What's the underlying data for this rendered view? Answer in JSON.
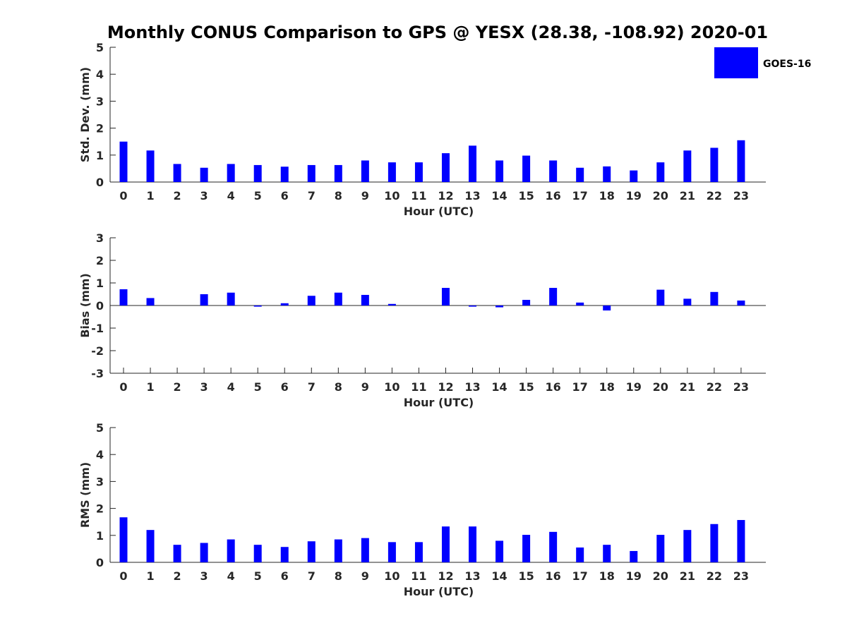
{
  "chart_data": {
    "title": "Monthly CONUS Comparison to GPS @ YESX (28.38, -108.92) 2020-01",
    "legend": {
      "label": "GOES-16",
      "color": "#0000ff",
      "placement": "top-right"
    },
    "panels": [
      {
        "type": "bar",
        "xlabel": "Hour (UTC)",
        "ylabel": "Std. Dev. (mm)",
        "ylim": [
          0,
          5
        ],
        "yticks": [
          "0",
          "1",
          "2",
          "3",
          "4",
          "5"
        ],
        "categories": [
          "0",
          "1",
          "2",
          "3",
          "4",
          "5",
          "6",
          "7",
          "8",
          "9",
          "10",
          "11",
          "12",
          "13",
          "14",
          "15",
          "16",
          "17",
          "18",
          "19",
          "20",
          "21",
          "22",
          "23"
        ],
        "values": [
          1.5,
          1.17,
          0.67,
          0.53,
          0.67,
          0.63,
          0.57,
          0.63,
          0.63,
          0.8,
          0.73,
          0.73,
          1.07,
          1.35,
          0.8,
          0.98,
          0.8,
          0.53,
          0.58,
          0.43,
          0.73,
          1.17,
          1.27,
          1.55
        ]
      },
      {
        "type": "bar",
        "xlabel": "Hour (UTC)",
        "ylabel": "Bias (mm)",
        "ylim": [
          -3,
          3
        ],
        "yticks": [
          "-3",
          "-2",
          "-1",
          "0",
          "1",
          "2",
          "3"
        ],
        "categories": [
          "0",
          "1",
          "2",
          "3",
          "4",
          "5",
          "6",
          "7",
          "8",
          "9",
          "10",
          "11",
          "12",
          "13",
          "14",
          "15",
          "16",
          "17",
          "18",
          "19",
          "20",
          "21",
          "22",
          "23"
        ],
        "values": [
          0.72,
          0.33,
          0,
          0.5,
          0.57,
          -0.05,
          0.1,
          0.43,
          0.57,
          0.47,
          0.07,
          0,
          0.78,
          -0.05,
          -0.08,
          0.25,
          0.78,
          0.13,
          -0.22,
          0,
          0.7,
          0.3,
          0.6,
          0.22
        ]
      },
      {
        "type": "bar",
        "xlabel": "Hour (UTC)",
        "ylabel": "RMS (mm)",
        "ylim": [
          0,
          5
        ],
        "yticks": [
          "0",
          "1",
          "2",
          "3",
          "4",
          "5"
        ],
        "categories": [
          "0",
          "1",
          "2",
          "3",
          "4",
          "5",
          "6",
          "7",
          "8",
          "9",
          "10",
          "11",
          "12",
          "13",
          "14",
          "15",
          "16",
          "17",
          "18",
          "19",
          "20",
          "21",
          "22",
          "23"
        ],
        "values": [
          1.67,
          1.2,
          0.65,
          0.72,
          0.85,
          0.65,
          0.57,
          0.78,
          0.85,
          0.9,
          0.75,
          0.75,
          1.33,
          1.33,
          0.8,
          1.02,
          1.13,
          0.55,
          0.65,
          0.42,
          1.02,
          1.2,
          1.42,
          1.57
        ]
      }
    ]
  }
}
